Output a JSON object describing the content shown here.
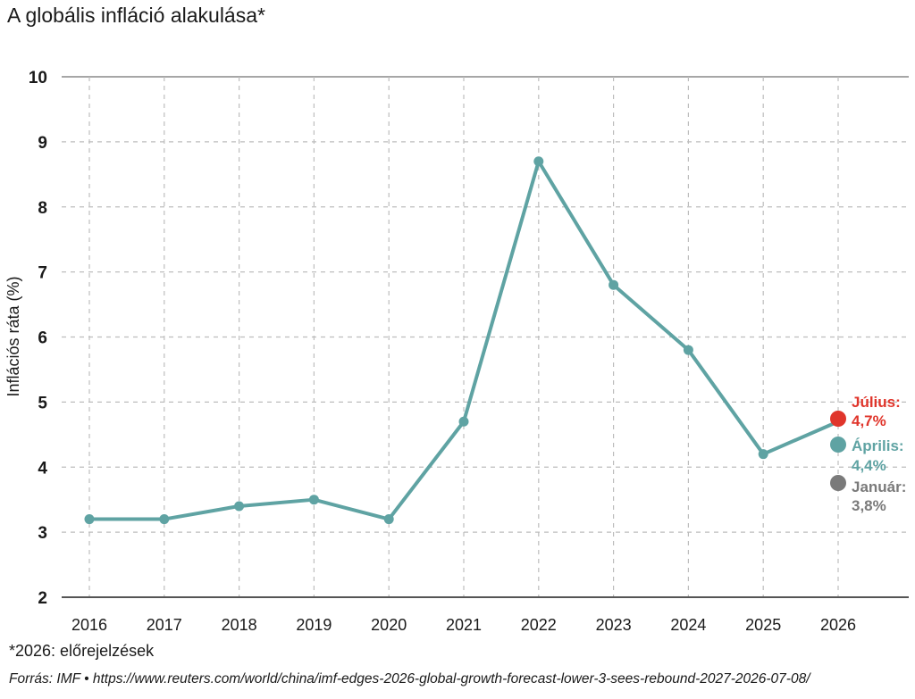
{
  "title": "A globális infláció alakulása*",
  "footnote": "*2026: előrejelzések",
  "source": "Forrás: IMF • https://www.reuters.com/world/china/imf-edges-2026-global-growth-forecast-lower-3-sees-rebound-2027-2026-07-08/",
  "chart_data": {
    "type": "line",
    "title": "A globális infláció alakulása*",
    "ylabel": "Inflációs ráta (%)",
    "xlabel": "",
    "x": [
      "2016",
      "2017",
      "2018",
      "2019",
      "2020",
      "2021",
      "2022",
      "2023",
      "2024",
      "2025",
      "2026"
    ],
    "y_ticks": [
      "2",
      "3",
      "4",
      "5",
      "6",
      "7",
      "8",
      "9",
      "10"
    ],
    "ylim": [
      2,
      10
    ],
    "grid": true,
    "series": [
      {
        "values": [
          3.2,
          3.2,
          3.4,
          3.5,
          3.2,
          4.7,
          8.7,
          6.8,
          5.8,
          4.2,
          4.7
        ],
        "color": "#5fa3a3"
      }
    ],
    "forecasts": [
      {
        "label": "Július:",
        "value_label": "4,7%",
        "x": "2026",
        "value": 4.7,
        "color": "#e0352b"
      },
      {
        "label": "Április:",
        "value_label": "4,4%",
        "x": "2026",
        "value": 4.4,
        "color": "#5fa3a3"
      },
      {
        "label": "Január:",
        "value_label": "3,8%",
        "x": "2026",
        "value": 3.8,
        "color": "#7a7a7a"
      }
    ]
  }
}
